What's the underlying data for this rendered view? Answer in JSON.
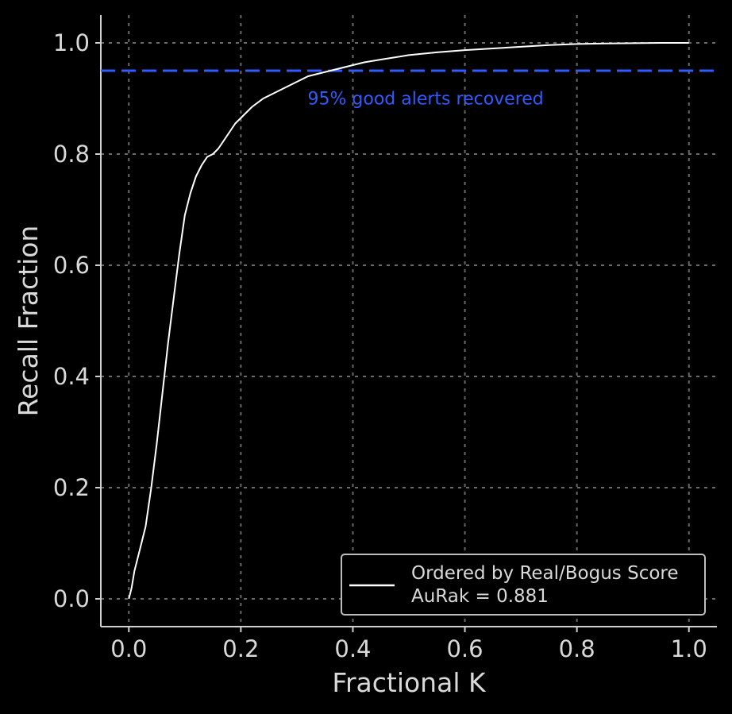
{
  "chart_data": {
    "type": "line",
    "xlabel": "Fractional K",
    "ylabel": "Recall Fraction",
    "xlim": [
      -0.05,
      1.05
    ],
    "ylim": [
      -0.05,
      1.05
    ],
    "xticks": [
      0.0,
      0.2,
      0.4,
      0.6,
      0.8,
      1.0
    ],
    "yticks": [
      0.0,
      0.2,
      0.4,
      0.6,
      0.8,
      1.0
    ],
    "xtick_labels": [
      "0.0",
      "0.2",
      "0.4",
      "0.6",
      "0.8",
      "1.0"
    ],
    "ytick_labels": [
      "0.0",
      "0.2",
      "0.4",
      "0.6",
      "0.8",
      "1.0"
    ],
    "grid": true,
    "legend_position": "lower-right",
    "legend": {
      "line1": "Ordered by Real/Bogus Score",
      "line2": "AuRak = 0.881"
    },
    "series": [
      {
        "name": "Ordered by Real/Bogus Score",
        "color": "#ffffff",
        "x": [
          0.0,
          0.005,
          0.01,
          0.02,
          0.03,
          0.04,
          0.05,
          0.06,
          0.07,
          0.08,
          0.09,
          0.1,
          0.11,
          0.12,
          0.13,
          0.14,
          0.15,
          0.16,
          0.17,
          0.18,
          0.19,
          0.2,
          0.22,
          0.24,
          0.26,
          0.28,
          0.3,
          0.32,
          0.34,
          0.36,
          0.38,
          0.4,
          0.42,
          0.45,
          0.5,
          0.55,
          0.6,
          0.65,
          0.7,
          0.75,
          0.8,
          0.85,
          0.9,
          0.95,
          1.0
        ],
        "y": [
          0.0,
          0.02,
          0.05,
          0.09,
          0.13,
          0.2,
          0.28,
          0.37,
          0.46,
          0.54,
          0.62,
          0.69,
          0.73,
          0.76,
          0.78,
          0.795,
          0.8,
          0.81,
          0.825,
          0.84,
          0.855,
          0.865,
          0.885,
          0.9,
          0.91,
          0.92,
          0.93,
          0.94,
          0.945,
          0.95,
          0.955,
          0.96,
          0.965,
          0.97,
          0.978,
          0.983,
          0.987,
          0.99,
          0.993,
          0.996,
          0.998,
          0.999,
          0.9995,
          1.0,
          1.0
        ]
      }
    ],
    "hline": {
      "y": 0.95,
      "color": "#2f5bff",
      "style": "dashed",
      "label": "95% good alerts recovered",
      "label_x": 0.53,
      "label_y": 0.895
    }
  }
}
